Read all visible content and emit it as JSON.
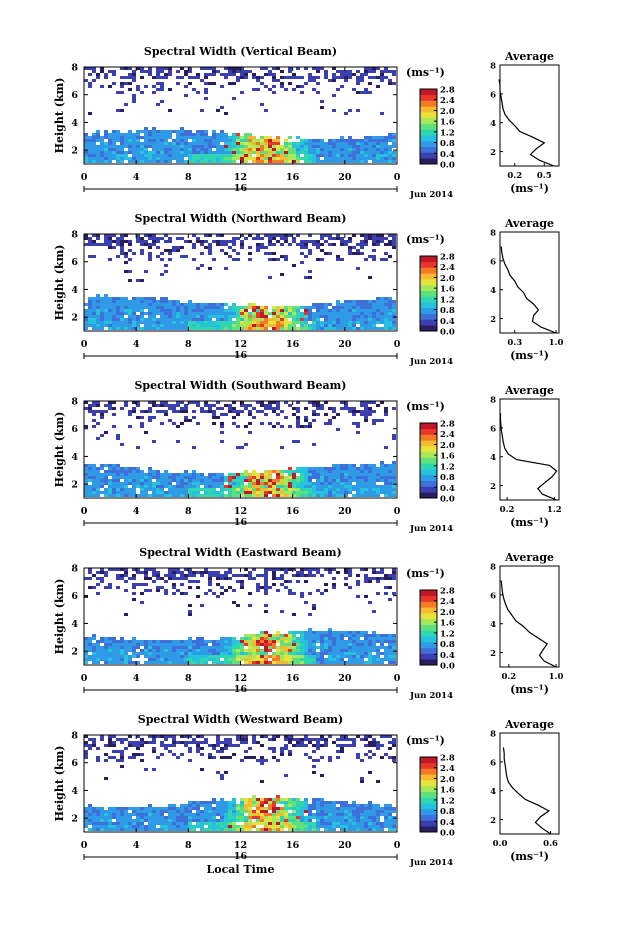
{
  "colors": {
    "scale": [
      "#2a1f5e",
      "#3b3fb0",
      "#3f6fd8",
      "#2f9be6",
      "#25c1dd",
      "#2fd6b0",
      "#5ee07a",
      "#a6e85a",
      "#e6e33c",
      "#f7b92f",
      "#f57a26",
      "#e8362a",
      "#c01828"
    ]
  },
  "chart_data": [
    {
      "type": "heatmap",
      "title": "Spectral Width (Vertical Beam)",
      "ylabel": "Height (km)",
      "xlabel": "",
      "xlim": [
        0,
        24
      ],
      "ylim": [
        1,
        8
      ],
      "xticks": [
        "0",
        "4",
        "8",
        "12",
        "16",
        "20",
        "0"
      ],
      "yticks": [
        "2",
        "4",
        "6",
        "8"
      ],
      "date_label": "16",
      "month_label": "Jun 2014",
      "colorbar": {
        "unit": "(ms⁻¹)",
        "ticks": [
          "2.8",
          "2.4",
          "2.0",
          "1.6",
          "1.2",
          "0.8",
          "0.4",
          "0.0"
        ],
        "range": [
          0,
          2.8
        ]
      },
      "profile": {
        "title": "Average",
        "xlabel": "(ms⁻¹)",
        "xticks": [
          "0.2",
          "0.5"
        ],
        "xlim": [
          0.05,
          0.65
        ],
        "heights": [
          1.0,
          1.4,
          1.8,
          2.2,
          2.6,
          3.0,
          3.4,
          3.8,
          4.2,
          4.6,
          5.0,
          5.4,
          5.8,
          6.2,
          6.6,
          7.0
        ],
        "values": [
          0.6,
          0.45,
          0.36,
          0.42,
          0.5,
          0.38,
          0.25,
          0.2,
          0.14,
          0.1,
          0.08,
          0.07,
          0.06,
          0.05,
          0.05,
          0.04
        ],
        "ytick_labels": [
          "2",
          "4",
          "6",
          "8"
        ]
      }
    },
    {
      "type": "heatmap",
      "title": "Spectral Width (Northward Beam)",
      "ylabel": "Height (km)",
      "xlabel": "",
      "xlim": [
        0,
        24
      ],
      "ylim": [
        1,
        8
      ],
      "xticks": [
        "0",
        "4",
        "8",
        "12",
        "16",
        "20",
        "0"
      ],
      "yticks": [
        "2",
        "4",
        "6",
        "8"
      ],
      "date_label": "16",
      "month_label": "Jun 2014",
      "colorbar": {
        "unit": "(ms⁻¹)",
        "ticks": [
          "2.8",
          "2.4",
          "2.0",
          "1.6",
          "1.2",
          "0.8",
          "0.4",
          "0.0"
        ],
        "range": [
          0,
          2.8
        ]
      },
      "profile": {
        "title": "Average",
        "xlabel": "(ms⁻¹)",
        "xticks": [
          "0.3",
          "1.0"
        ],
        "xlim": [
          0.05,
          1.05
        ],
        "heights": [
          1.0,
          1.4,
          1.8,
          2.2,
          2.6,
          3.0,
          3.4,
          3.8,
          4.2,
          4.6,
          5.0,
          5.4,
          5.8,
          6.2,
          6.6,
          7.0
        ],
        "values": [
          1.0,
          0.75,
          0.6,
          0.62,
          0.7,
          0.62,
          0.5,
          0.45,
          0.35,
          0.3,
          0.22,
          0.18,
          0.13,
          0.1,
          0.08,
          0.07
        ],
        "ytick_labels": [
          "2",
          "4",
          "6",
          "8"
        ]
      }
    },
    {
      "type": "heatmap",
      "title": "Spectral Width (Southward Beam)",
      "ylabel": "Height (km)",
      "xlabel": "",
      "xlim": [
        0,
        24
      ],
      "ylim": [
        1,
        8
      ],
      "xticks": [
        "0",
        "4",
        "8",
        "12",
        "16",
        "20",
        "0"
      ],
      "yticks": [
        "2",
        "4",
        "6",
        "8"
      ],
      "date_label": "16",
      "month_label": "Jun 2014",
      "colorbar": {
        "unit": "(ms⁻¹)",
        "ticks": [
          "2.8",
          "2.4",
          "2.0",
          "1.6",
          "1.2",
          "0.8",
          "0.4",
          "0.0"
        ],
        "range": [
          0,
          2.8
        ]
      },
      "profile": {
        "title": "Average",
        "xlabel": "(ms⁻¹)",
        "xticks": [
          "0.2",
          "1.2"
        ],
        "xlim": [
          0.05,
          1.3
        ],
        "heights": [
          1.0,
          1.4,
          1.8,
          2.2,
          2.6,
          3.0,
          3.4,
          3.8,
          4.2,
          4.6,
          5.0,
          5.4,
          5.8,
          6.2,
          6.6,
          7.0
        ],
        "values": [
          1.25,
          0.95,
          0.85,
          1.0,
          1.15,
          1.25,
          1.1,
          0.4,
          0.22,
          0.15,
          0.12,
          0.1,
          0.08,
          0.07,
          0.06,
          0.06
        ],
        "ytick_labels": [
          "2",
          "4",
          "6",
          "8"
        ]
      }
    },
    {
      "type": "heatmap",
      "title": "Spectral Width (Eastward Beam)",
      "ylabel": "Height (km)",
      "xlabel": "",
      "xlim": [
        0,
        24
      ],
      "ylim": [
        1,
        8
      ],
      "xticks": [
        "0",
        "4",
        "8",
        "12",
        "16",
        "20",
        "0"
      ],
      "yticks": [
        "2",
        "4",
        "6",
        "8"
      ],
      "date_label": "16",
      "month_label": "Jun 2014",
      "colorbar": {
        "unit": "(ms⁻¹)",
        "ticks": [
          "2.8",
          "2.4",
          "2.0",
          "1.6",
          "1.2",
          "0.8",
          "0.4",
          "0.0"
        ],
        "range": [
          0,
          2.8
        ]
      },
      "profile": {
        "title": "Average",
        "xlabel": "(ms⁻¹)",
        "xticks": [
          "0.2",
          "1.0"
        ],
        "xlim": [
          0.05,
          1.05
        ],
        "heights": [
          1.0,
          1.4,
          1.8,
          2.2,
          2.6,
          3.0,
          3.4,
          3.8,
          4.2,
          4.6,
          5.0,
          5.4,
          5.8,
          6.2,
          6.6,
          7.0
        ],
        "values": [
          1.0,
          0.8,
          0.72,
          0.78,
          0.85,
          0.7,
          0.55,
          0.45,
          0.32,
          0.25,
          0.18,
          0.14,
          0.11,
          0.09,
          0.08,
          0.07
        ],
        "ytick_labels": [
          "2",
          "4",
          "6",
          "8"
        ]
      }
    },
    {
      "type": "heatmap",
      "title": "Spectral Width (Westward Beam)",
      "ylabel": "Height (km)",
      "xlabel": "Local Time",
      "xlim": [
        0,
        24
      ],
      "ylim": [
        1,
        8
      ],
      "xticks": [
        "0",
        "4",
        "8",
        "12",
        "16",
        "20",
        "0"
      ],
      "yticks": [
        "2",
        "4",
        "6",
        "8"
      ],
      "date_label": "16",
      "month_label": "Jun 2014",
      "colorbar": {
        "unit": "(ms⁻¹)",
        "ticks": [
          "2.8",
          "2.4",
          "2.0",
          "1.6",
          "1.2",
          "0.8",
          "0.4",
          "0.0"
        ],
        "range": [
          0,
          2.8
        ]
      },
      "profile": {
        "title": "Average",
        "xlabel": "(ms⁻¹)",
        "xticks": [
          "0.0",
          "0.6"
        ],
        "xlim": [
          0.0,
          0.7
        ],
        "heights": [
          1.0,
          1.4,
          1.8,
          2.2,
          2.6,
          3.0,
          3.4,
          3.8,
          4.2,
          4.6,
          5.0,
          5.4,
          5.8,
          6.2,
          6.6,
          7.0
        ],
        "values": [
          0.6,
          0.5,
          0.42,
          0.48,
          0.58,
          0.45,
          0.3,
          0.22,
          0.15,
          0.1,
          0.08,
          0.07,
          0.06,
          0.05,
          0.05,
          0.04
        ],
        "ytick_labels": [
          "2",
          "4",
          "6",
          "8"
        ]
      }
    }
  ]
}
